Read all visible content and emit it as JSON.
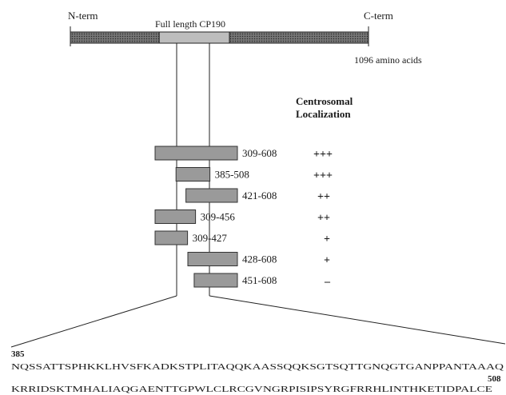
{
  "protein": {
    "n_term": "N-term",
    "c_term": "C-term",
    "title": "Full length CP190",
    "length_label": "1096 amino acids",
    "length": 1096,
    "highlight_start": 309,
    "highlight_end": 608
  },
  "localization_header": {
    "line1": "Centrosomal",
    "line2": "Localization"
  },
  "constructs": [
    {
      "label": "309-608",
      "start": 309,
      "end": 608,
      "score": "+++"
    },
    {
      "label": "385-508",
      "start": 385,
      "end": 508,
      "score": "+++"
    },
    {
      "label": "421-608",
      "start": 421,
      "end": 608,
      "score": "++"
    },
    {
      "label": "309-456",
      "start": 309,
      "end": 456,
      "score": "++"
    },
    {
      "label": "309-427",
      "start": 309,
      "end": 427,
      "score": "+"
    },
    {
      "label": "428-608",
      "start": 428,
      "end": 608,
      "score": "+"
    },
    {
      "label": "451-608",
      "start": 451,
      "end": 608,
      "score": "–"
    }
  ],
  "sequence": {
    "start_label": "385",
    "end_label": "508",
    "line1": "NQSSATTSPHKKLHVSFKADKSTPLITAQQKAASSQQKSGTSQTTGNQGTGANPPANTAAAQ",
    "line2": "KRRIDSKTMHALIAQGAENTTGPWLCLRCGVNGRPISIPSYRGFRRHLINTHKETIDPALCE"
  },
  "colors": {
    "bar_fill": "#9a9a9a",
    "bar_stroke": "#333333",
    "full_bar": "#555555",
    "highlight": "#bdbdbd"
  }
}
